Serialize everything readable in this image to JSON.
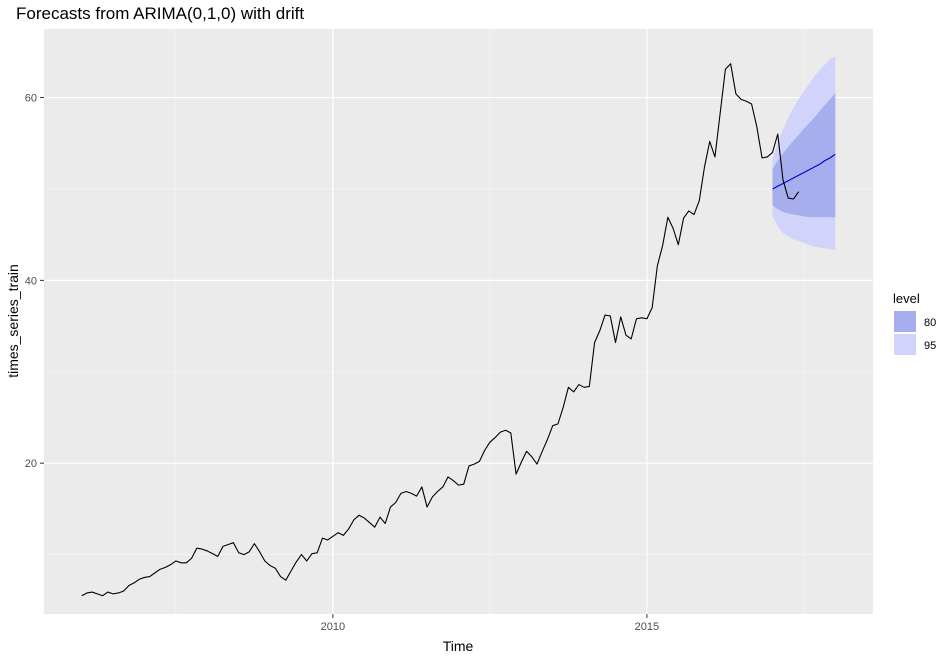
{
  "chart_data": {
    "type": "line",
    "title": "Forecasts from ARIMA(0,1,0) with drift",
    "xlabel": "Time",
    "ylabel": "times_series_train",
    "xlim": [
      2005.4,
      2018.6
    ],
    "ylim": [
      3.5,
      67.5
    ],
    "x_ticks": [
      2010,
      2015
    ],
    "y_ticks": [
      20,
      40,
      60
    ],
    "grid": true,
    "legend": {
      "title": "level",
      "position": "right",
      "entries": [
        {
          "label": "80",
          "color": "#a7aeee"
        },
        {
          "label": "95",
          "color": "#d1d3fa"
        }
      ]
    },
    "colors": {
      "panel": "#ebebeb",
      "grid_major": "#ffffff",
      "grid_minor": "#f4f4f4",
      "history": "#000000",
      "forecast": "#0000cc",
      "band80": "#a7aeee",
      "band95": "#d1d3fa"
    },
    "series": [
      {
        "name": "times_series_train",
        "start": 2006.0,
        "frequency": 12,
        "values": [
          5.5,
          5.8,
          5.9,
          5.7,
          5.5,
          5.9,
          5.7,
          5.8,
          6.0,
          6.6,
          6.9,
          7.3,
          7.5,
          7.6,
          8.0,
          8.4,
          8.6,
          8.9,
          9.3,
          9.1,
          9.1,
          9.6,
          10.7,
          10.6,
          10.4,
          10.1,
          9.8,
          10.9,
          11.1,
          11.3,
          10.2,
          10.0,
          10.3,
          11.2,
          10.3,
          9.3,
          8.8,
          8.5,
          7.6,
          7.2,
          8.2,
          9.2,
          10.0,
          9.3,
          10.1,
          10.2,
          11.8,
          11.6,
          12.0,
          12.4,
          12.1,
          12.8,
          13.8,
          14.3,
          14.0,
          13.5,
          13.0,
          14.1,
          13.4,
          15.2,
          15.7,
          16.7,
          16.9,
          16.7,
          16.4,
          17.4,
          15.2,
          16.3,
          16.9,
          17.4,
          18.5,
          18.1,
          17.6,
          17.7,
          19.7,
          19.9,
          20.2,
          21.4,
          22.3,
          22.8,
          23.4,
          23.6,
          23.3,
          18.8,
          20.1,
          21.3,
          20.7,
          19.9,
          21.3,
          22.6,
          24.1,
          24.3,
          26.1,
          28.3,
          27.8,
          28.6,
          28.3,
          28.4,
          33.2,
          34.5,
          36.2,
          36.1,
          33.2,
          36.0,
          34.0,
          33.6,
          35.8,
          35.9,
          35.8,
          37.0,
          41.6,
          43.8,
          46.9,
          45.7,
          43.9,
          46.8,
          47.6,
          47.2,
          48.7,
          52.4,
          55.2,
          53.5,
          58.3,
          63.1,
          63.7,
          60.4,
          59.8,
          59.6,
          59.3,
          56.8,
          53.4,
          53.5,
          54.0,
          56.0,
          51.0,
          49.0,
          48.9,
          49.7
        ]
      },
      {
        "name": "forecast",
        "start": 2017.0,
        "frequency": 12,
        "values": [
          50.0,
          50.3,
          50.6,
          50.9,
          51.2,
          51.5,
          51.8,
          52.1,
          52.4,
          52.7,
          53.1,
          53.4,
          53.8
        ]
      }
    ],
    "bands": {
      "start": 2017.0,
      "frequency": 12,
      "lo80": [
        48.2,
        47.8,
        47.5,
        47.3,
        47.2,
        47.1,
        47.0,
        46.9,
        46.9,
        46.9,
        46.9,
        46.9,
        46.9
      ],
      "hi80": [
        52.2,
        53.1,
        53.9,
        54.6,
        55.3,
        55.9,
        56.6,
        57.2,
        57.8,
        58.5,
        59.2,
        59.8,
        60.5
      ],
      "lo95": [
        47.0,
        45.9,
        45.2,
        44.8,
        44.5,
        44.3,
        44.1,
        43.9,
        43.7,
        43.6,
        43.5,
        43.4,
        43.3
      ],
      "hi95": [
        53.2,
        55.0,
        56.5,
        57.8,
        58.9,
        59.8,
        60.7,
        61.5,
        62.3,
        63.0,
        63.6,
        64.2,
        64.5
      ]
    }
  }
}
